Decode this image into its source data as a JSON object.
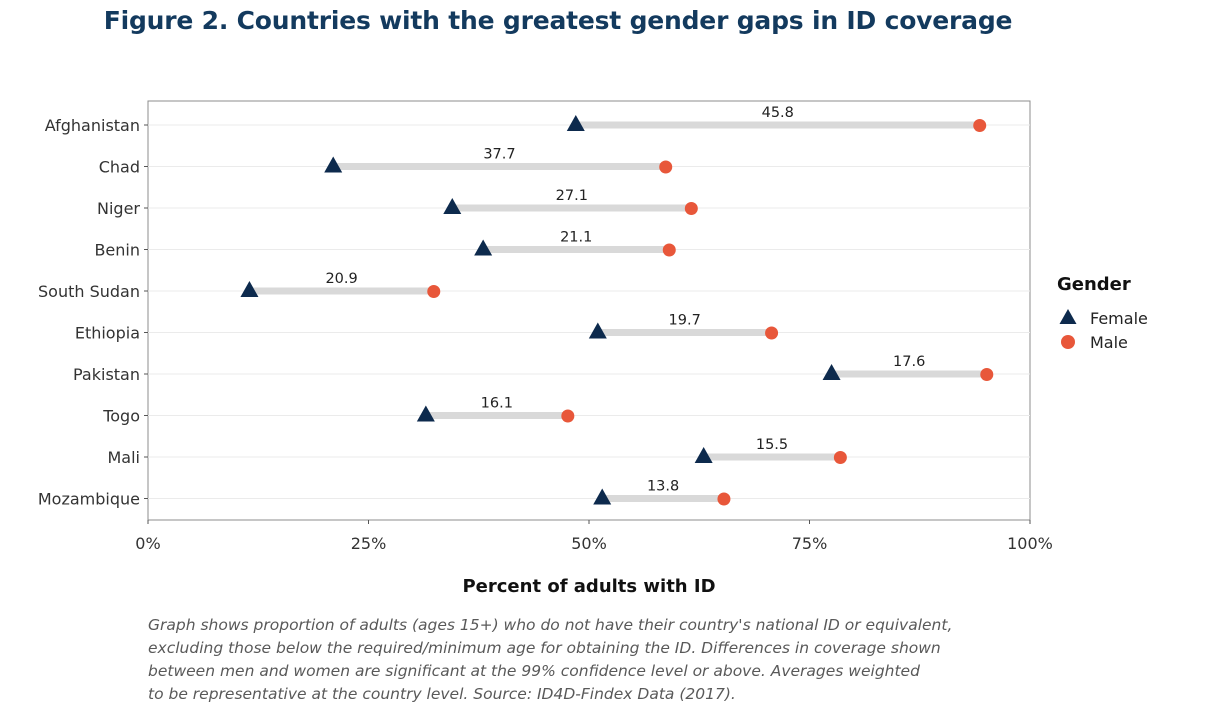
{
  "title": "Figure 2. Countries with the greatest gender gaps in ID coverage",
  "caption_lines": [
    "Graph shows proportion of adults (ages 15+) who do not have their country's national ID or equivalent,",
    "excluding those below the required/minimum age for obtaining the ID. Differences in coverage shown",
    "between men and women are significant at the 99% confidence level or above. Averages weighted",
    "to be representative at the country level. Source: ID4D-Findex Data (2017)."
  ],
  "colors": {
    "female": "#0d2a4d",
    "male": "#e8573a",
    "bar": "#d9d9d9",
    "title": "#133a5e",
    "grid": "#ebebeb"
  },
  "chart_data": {
    "type": "dumbbell",
    "xlabel": "Percent of adults with ID",
    "xlim": [
      0,
      100
    ],
    "x_ticks": [
      0,
      25,
      50,
      75,
      100
    ],
    "x_tick_labels": [
      "0%",
      "25%",
      "50%",
      "75%",
      "100%"
    ],
    "grid": true,
    "legend": {
      "title": "Gender",
      "position": "right",
      "items": [
        "Female",
        "Male"
      ]
    },
    "categories": [
      "Afghanistan",
      "Chad",
      "Niger",
      "Benin",
      "South Sudan",
      "Ethiopia",
      "Pakistan",
      "Togo",
      "Mali",
      "Mozambique"
    ],
    "series": [
      {
        "name": "Female",
        "marker": "triangle",
        "values": [
          48.5,
          21.0,
          34.5,
          38.0,
          11.5,
          51.0,
          77.5,
          31.5,
          63.0,
          51.5
        ]
      },
      {
        "name": "Male",
        "marker": "circle",
        "values": [
          94.3,
          58.7,
          61.6,
          59.1,
          32.4,
          70.7,
          95.1,
          47.6,
          78.5,
          65.3
        ]
      }
    ],
    "gap_labels": [
      "45.8",
      "37.7",
      "27.1",
      "21.1",
      "20.9",
      "19.7",
      "17.6",
      "16.1",
      "15.5",
      "13.8"
    ]
  }
}
